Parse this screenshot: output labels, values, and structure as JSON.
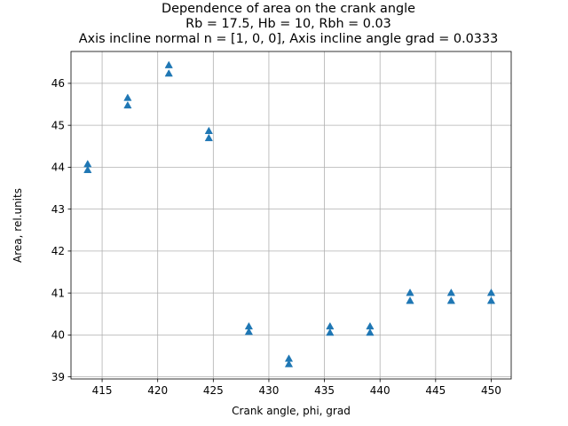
{
  "chart_data": {
    "type": "scatter",
    "title_lines": [
      "Dependence of area on the crank angle",
      "Rb = 17.5, Hb = 10, Rbh = 0.03",
      "Axis incline normal n = [1, 0, 0], Axis incline angle grad = 0.0333"
    ],
    "xlabel": "Crank angle, phi, grad",
    "ylabel": "Area, rel.units",
    "xlim": [
      412.2,
      451.8
    ],
    "ylim": [
      38.95,
      46.76
    ],
    "xticks": [
      415,
      420,
      425,
      430,
      435,
      440,
      445,
      450
    ],
    "yticks": [
      39,
      40,
      41,
      42,
      43,
      44,
      45,
      46
    ],
    "grid": true,
    "marker": "triangle-up",
    "color": "#1f77b4",
    "points": [
      {
        "x": 413.7,
        "y": 44.07
      },
      {
        "x": 413.7,
        "y": 43.93
      },
      {
        "x": 417.3,
        "y": 45.65
      },
      {
        "x": 417.3,
        "y": 45.47
      },
      {
        "x": 421.0,
        "y": 46.43
      },
      {
        "x": 421.0,
        "y": 46.23
      },
      {
        "x": 424.6,
        "y": 44.86
      },
      {
        "x": 424.6,
        "y": 44.69
      },
      {
        "x": 428.2,
        "y": 40.2
      },
      {
        "x": 428.2,
        "y": 40.07
      },
      {
        "x": 431.8,
        "y": 39.43
      },
      {
        "x": 431.8,
        "y": 39.3
      },
      {
        "x": 435.5,
        "y": 40.2
      },
      {
        "x": 435.5,
        "y": 40.05
      },
      {
        "x": 439.1,
        "y": 40.2
      },
      {
        "x": 439.1,
        "y": 40.05
      },
      {
        "x": 442.7,
        "y": 41.0
      },
      {
        "x": 442.7,
        "y": 40.81
      },
      {
        "x": 446.4,
        "y": 41.0
      },
      {
        "x": 446.4,
        "y": 40.81
      },
      {
        "x": 450.0,
        "y": 41.0
      },
      {
        "x": 450.0,
        "y": 40.81
      }
    ]
  }
}
